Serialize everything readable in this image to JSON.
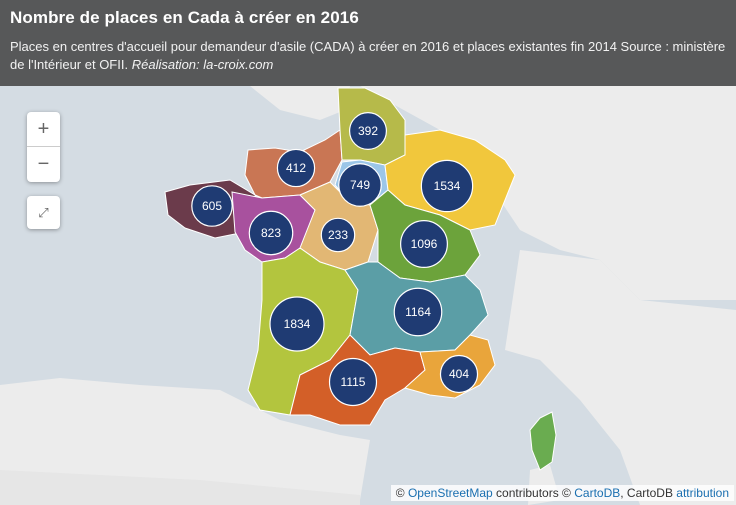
{
  "header": {
    "title": "Nombre de places en Cada à créer en 2016",
    "subtitle_1": "Places en centres d'accueil pour demandeur d'asile (CADA) à créer en 2016 et places existantes fin 2014 Source : ministère de l'Intérieur et OFII.",
    "subtitle_credit_label": "Réalisation:",
    "subtitle_credit_site": "la-croix.com"
  },
  "controls": {
    "zoom_in": "+",
    "zoom_out": "−",
    "fullscreen": "⤢"
  },
  "attribution": {
    "copy1": "©",
    "osm": "OpenStreetMap",
    "contributors": "contributors ©",
    "cartodb": "CartoDB",
    "cartodb2": ", CartoDB",
    "attribution": "attribution"
  },
  "regions": [
    {
      "key": "bretagne",
      "color": "#6b3b4b",
      "value": "605"
    },
    {
      "key": "normandie",
      "color": "#c97654",
      "value": "412"
    },
    {
      "key": "hauts-de-france",
      "color": "#b6ba4a",
      "value": "392"
    },
    {
      "key": "ile-de-france",
      "color": "#9cc6e8",
      "value": "749"
    },
    {
      "key": "grand-est",
      "color": "#f1c73c",
      "value": "1534"
    },
    {
      "key": "pays-de-la-loire",
      "color": "#a8519e",
      "value": "823"
    },
    {
      "key": "centre",
      "color": "#e2b774",
      "value": "233"
    },
    {
      "key": "bourgogne",
      "color": "#6ca33b",
      "value": "1096"
    },
    {
      "key": "nouvelle-aquitaine",
      "color": "#b3c53e",
      "value": "1834"
    },
    {
      "key": "auvergne-rhone-alpes",
      "color": "#5b9ea6",
      "value": "1164"
    },
    {
      "key": "occitanie",
      "color": "#d35f28",
      "value": "1115"
    },
    {
      "key": "paca",
      "color": "#e9a53b",
      "value": "404"
    },
    {
      "key": "corse",
      "color": "#6aac50",
      "value": ""
    }
  ]
}
